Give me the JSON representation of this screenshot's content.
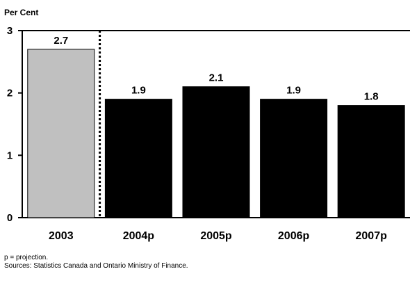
{
  "chart_data": {
    "type": "bar",
    "ylabel": "Per Cent",
    "categories": [
      "2003",
      "2004p",
      "2005p",
      "2006p",
      "2007p"
    ],
    "values": [
      2.7,
      1.9,
      2.1,
      1.9,
      1.8
    ],
    "data_labels": [
      "2.7",
      "1.9",
      "2.1",
      "1.9",
      "1.8"
    ],
    "ylim": [
      0,
      3
    ],
    "yticks": [
      0,
      1,
      2,
      3
    ],
    "ytick_labels": [
      "0",
      "1",
      "2",
      "3"
    ],
    "bar_colors": [
      "#c0c0c0",
      "#000000",
      "#000000",
      "#000000",
      "#000000"
    ],
    "divider_after_category": "2003",
    "grid": false,
    "legend": "none"
  },
  "footnotes": {
    "projection_note": "p = projection.",
    "sources": "Sources: Statistics Canada and Ontario Ministry of Finance."
  }
}
